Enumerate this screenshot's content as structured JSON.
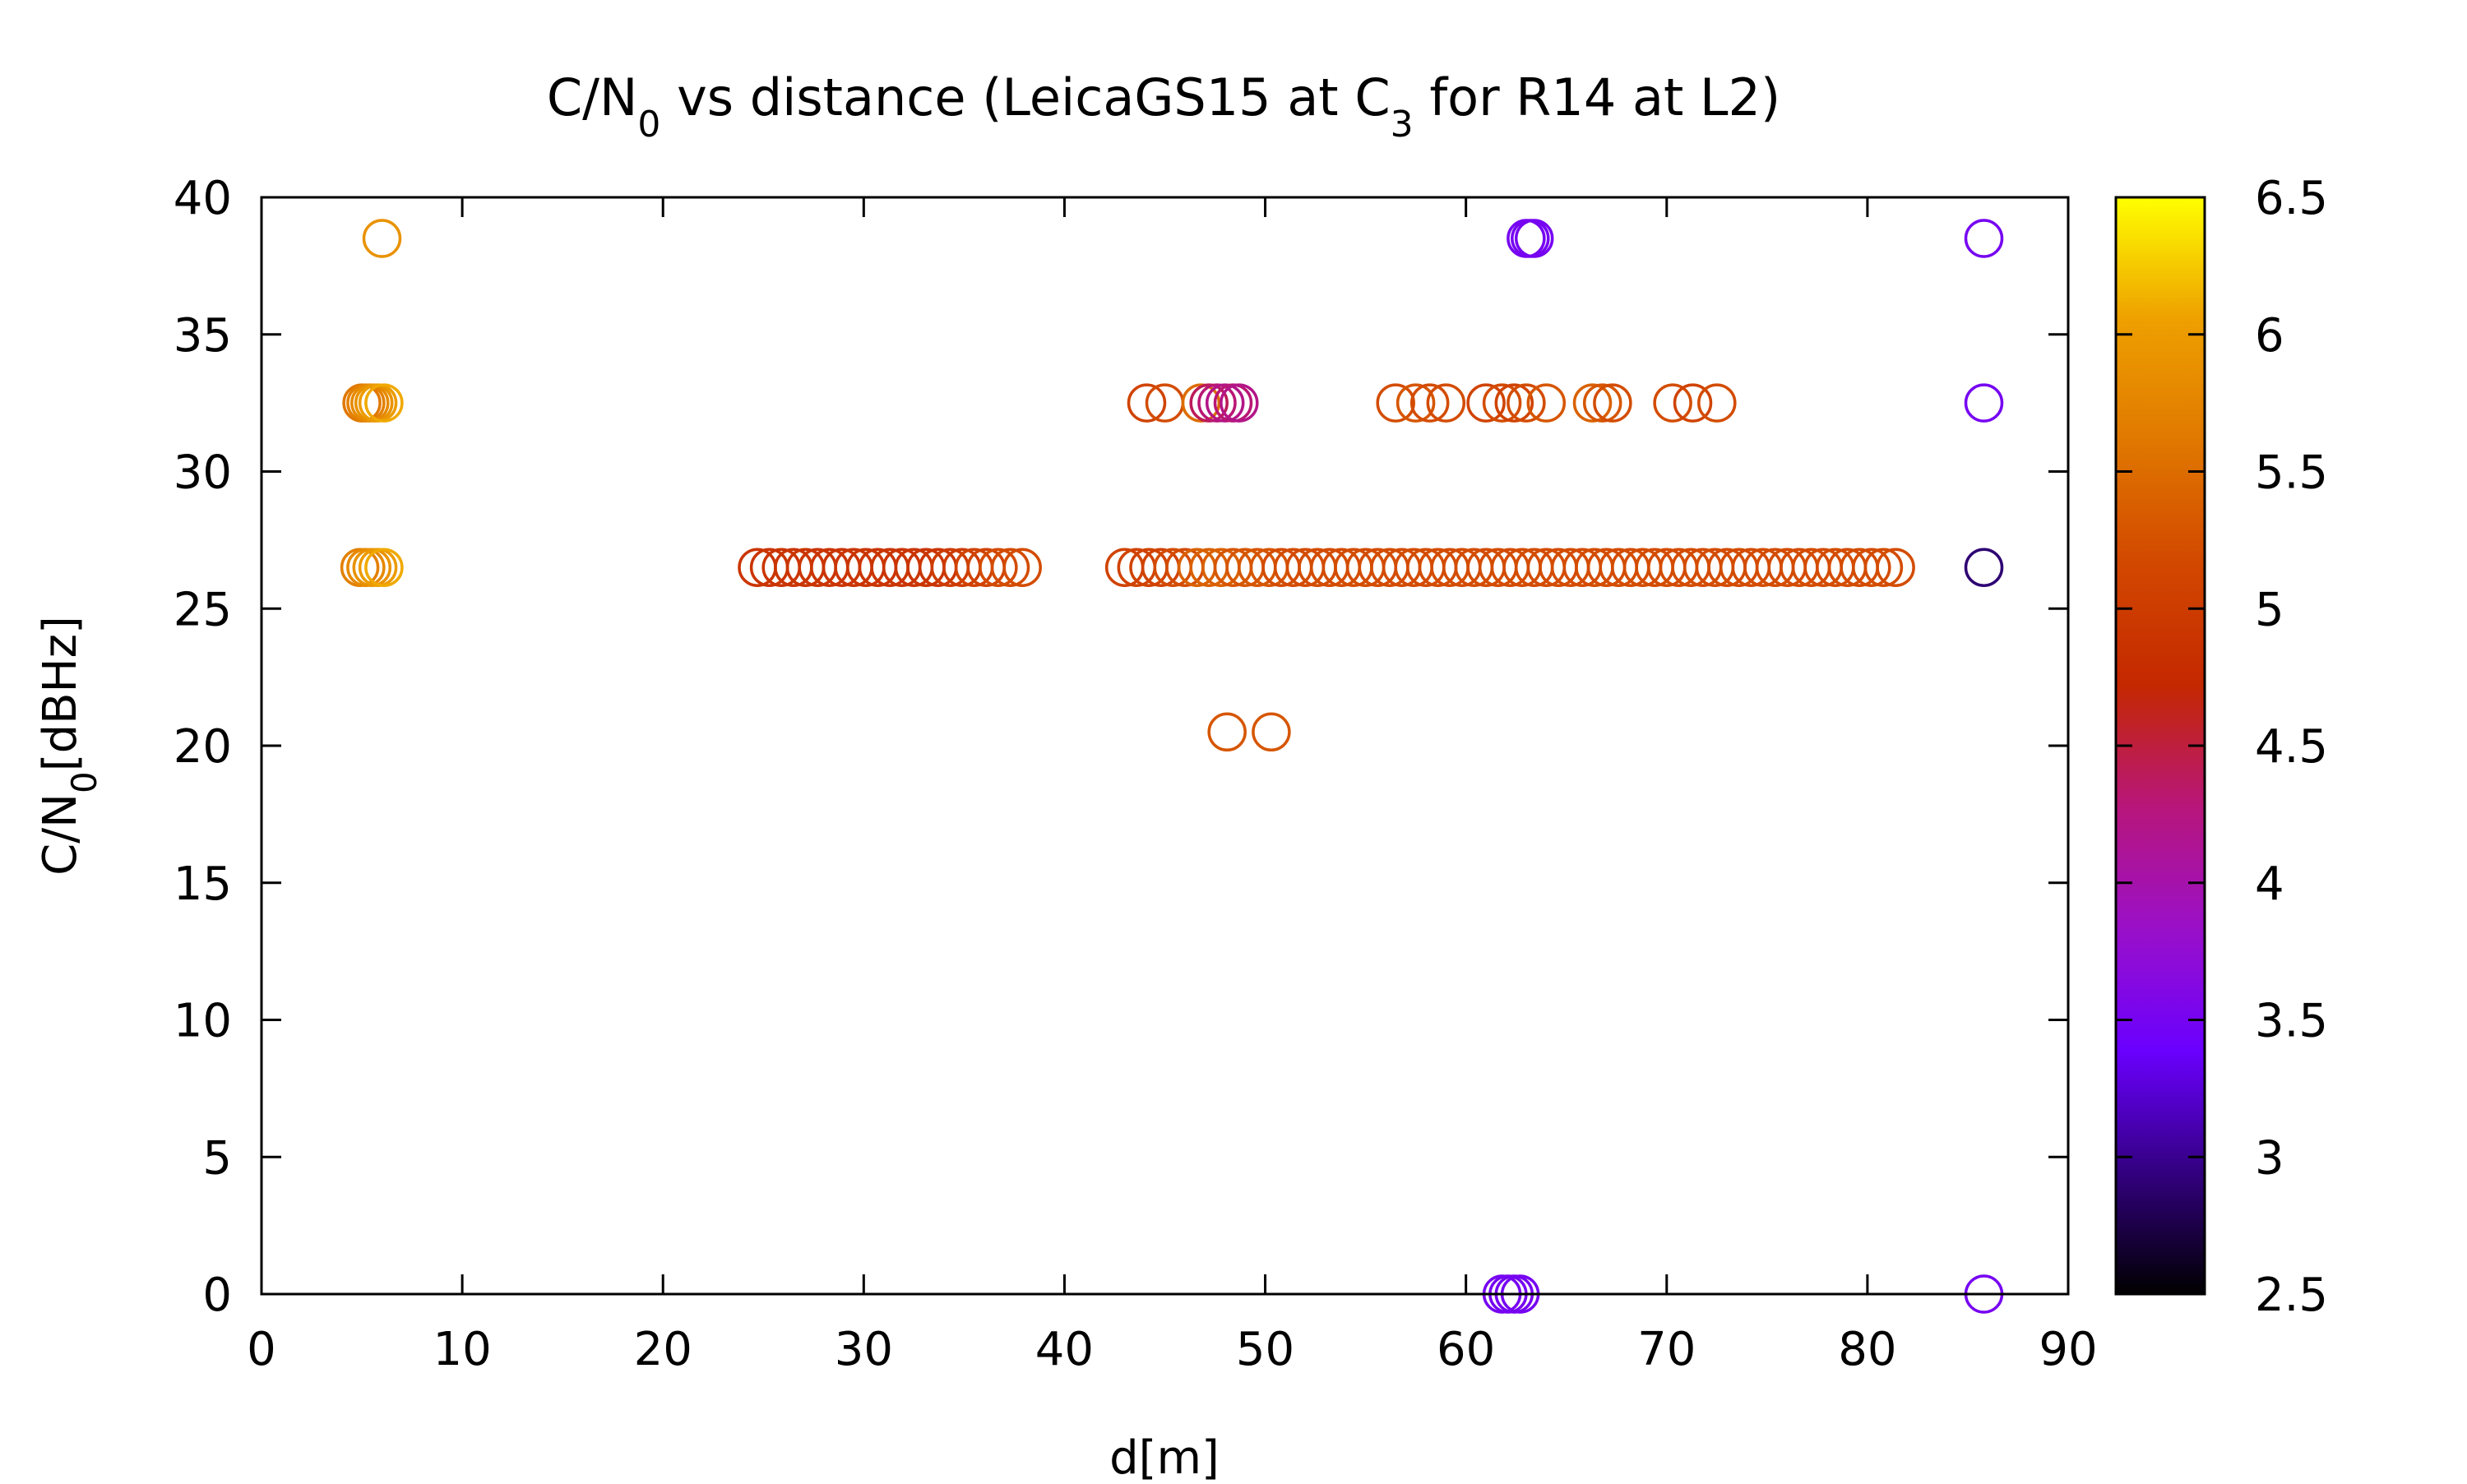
{
  "chart_data": {
    "type": "scatter",
    "title": {
      "prefix": "C/N",
      "prefix_sub": "0",
      "middle": " vs distance (LeicaGS15 at C",
      "middle_sub": "3",
      "suffix": " for R14 at L2)"
    },
    "xlabel": "d[m]",
    "ylabel": {
      "main": "C/N",
      "sub": "0",
      "unit": "[dBHz]"
    },
    "xlim": [
      0,
      90
    ],
    "ylim": [
      0,
      40
    ],
    "xticks": [
      0,
      10,
      20,
      30,
      40,
      50,
      60,
      70,
      80,
      90
    ],
    "yticks": [
      0,
      5,
      10,
      15,
      20,
      25,
      30,
      35,
      40
    ],
    "grid": false,
    "marker": "open-circle",
    "colorbar": {
      "min": 2.5,
      "max": 6.5,
      "ticks": [
        "2.5",
        "3",
        "3.5",
        "4",
        "4.5",
        "5",
        "5.5",
        "6",
        "6.5"
      ],
      "palette": [
        "#000000",
        "#330080",
        "#6a00ff",
        "#9a10c8",
        "#b8167a",
        "#c42800",
        "#d24800",
        "#e07800",
        "#eea000",
        "#ffff00"
      ]
    },
    "points": [
      {
        "x": 6.0,
        "y": 38.5,
        "c": 5.9
      },
      {
        "x": 63.0,
        "y": 38.5,
        "c": 3.5
      },
      {
        "x": 63.2,
        "y": 38.5,
        "c": 3.5
      },
      {
        "x": 63.4,
        "y": 38.5,
        "c": 3.5
      },
      {
        "x": 85.8,
        "y": 38.5,
        "c": 3.5
      },
      {
        "x": 5.0,
        "y": 32.5,
        "c": 5.6
      },
      {
        "x": 5.2,
        "y": 32.5,
        "c": 5.7
      },
      {
        "x": 5.4,
        "y": 32.5,
        "c": 5.8
      },
      {
        "x": 5.6,
        "y": 32.5,
        "c": 5.9
      },
      {
        "x": 5.8,
        "y": 32.5,
        "c": 6.0
      },
      {
        "x": 6.1,
        "y": 32.5,
        "c": 6.1
      },
      {
        "x": 44.1,
        "y": 32.5,
        "c": 5.1
      },
      {
        "x": 45.0,
        "y": 32.5,
        "c": 5.2
      },
      {
        "x": 46.8,
        "y": 32.5,
        "c": 5.5
      },
      {
        "x": 47.2,
        "y": 32.5,
        "c": 4.4
      },
      {
        "x": 47.6,
        "y": 32.5,
        "c": 4.3
      },
      {
        "x": 48.0,
        "y": 32.5,
        "c": 4.2
      },
      {
        "x": 48.4,
        "y": 32.5,
        "c": 4.3
      },
      {
        "x": 48.7,
        "y": 32.5,
        "c": 4.2
      },
      {
        "x": 56.5,
        "y": 32.5,
        "c": 5.2
      },
      {
        "x": 57.5,
        "y": 32.5,
        "c": 5.3
      },
      {
        "x": 58.2,
        "y": 32.5,
        "c": 5.2
      },
      {
        "x": 59.0,
        "y": 32.5,
        "c": 5.2
      },
      {
        "x": 61.0,
        "y": 32.5,
        "c": 5.1
      },
      {
        "x": 61.8,
        "y": 32.5,
        "c": 5.2
      },
      {
        "x": 62.4,
        "y": 32.5,
        "c": 5.1
      },
      {
        "x": 63.0,
        "y": 32.5,
        "c": 5.2
      },
      {
        "x": 64.0,
        "y": 32.5,
        "c": 5.3
      },
      {
        "x": 66.3,
        "y": 32.5,
        "c": 5.4
      },
      {
        "x": 66.8,
        "y": 32.5,
        "c": 5.3
      },
      {
        "x": 67.3,
        "y": 32.5,
        "c": 5.2
      },
      {
        "x": 70.3,
        "y": 32.5,
        "c": 5.2
      },
      {
        "x": 71.3,
        "y": 32.5,
        "c": 5.1
      },
      {
        "x": 72.5,
        "y": 32.5,
        "c": 5.2
      },
      {
        "x": 85.8,
        "y": 32.5,
        "c": 3.5
      },
      {
        "x": 4.9,
        "y": 26.5,
        "c": 5.7
      },
      {
        "x": 5.2,
        "y": 26.5,
        "c": 5.8
      },
      {
        "x": 5.5,
        "y": 26.5,
        "c": 5.9
      },
      {
        "x": 5.8,
        "y": 26.5,
        "c": 6.0
      },
      {
        "x": 6.1,
        "y": 26.5,
        "c": 6.1
      },
      {
        "x": 24.7,
        "y": 26.5,
        "c": 4.9
      },
      {
        "x": 25.3,
        "y": 26.5,
        "c": 4.9
      },
      {
        "x": 25.9,
        "y": 26.5,
        "c": 4.9
      },
      {
        "x": 26.5,
        "y": 26.5,
        "c": 4.9
      },
      {
        "x": 27.1,
        "y": 26.5,
        "c": 4.9
      },
      {
        "x": 27.7,
        "y": 26.5,
        "c": 4.9
      },
      {
        "x": 28.3,
        "y": 26.5,
        "c": 4.9
      },
      {
        "x": 28.9,
        "y": 26.5,
        "c": 4.9
      },
      {
        "x": 29.5,
        "y": 26.5,
        "c": 4.9
      },
      {
        "x": 30.1,
        "y": 26.5,
        "c": 4.9
      },
      {
        "x": 30.7,
        "y": 26.5,
        "c": 4.9
      },
      {
        "x": 31.3,
        "y": 26.5,
        "c": 4.9
      },
      {
        "x": 31.9,
        "y": 26.5,
        "c": 4.9
      },
      {
        "x": 32.5,
        "y": 26.5,
        "c": 4.9
      },
      {
        "x": 33.1,
        "y": 26.5,
        "c": 4.9
      },
      {
        "x": 33.7,
        "y": 26.5,
        "c": 4.9
      },
      {
        "x": 34.3,
        "y": 26.5,
        "c": 5.0
      },
      {
        "x": 34.9,
        "y": 26.5,
        "c": 5.0
      },
      {
        "x": 35.5,
        "y": 26.5,
        "c": 5.1
      },
      {
        "x": 36.1,
        "y": 26.5,
        "c": 5.1
      },
      {
        "x": 36.7,
        "y": 26.5,
        "c": 5.2
      },
      {
        "x": 37.3,
        "y": 26.5,
        "c": 5.2
      },
      {
        "x": 37.9,
        "y": 26.5,
        "c": 5.2
      },
      {
        "x": 43.0,
        "y": 26.5,
        "c": 5.1
      },
      {
        "x": 43.6,
        "y": 26.5,
        "c": 5.1
      },
      {
        "x": 44.2,
        "y": 26.5,
        "c": 5.1
      },
      {
        "x": 44.8,
        "y": 26.5,
        "c": 5.1
      },
      {
        "x": 45.4,
        "y": 26.5,
        "c": 5.2
      },
      {
        "x": 46.0,
        "y": 26.5,
        "c": 5.2
      },
      {
        "x": 46.6,
        "y": 26.5,
        "c": 5.4
      },
      {
        "x": 47.2,
        "y": 26.5,
        "c": 5.4
      },
      {
        "x": 47.8,
        "y": 26.5,
        "c": 5.4
      },
      {
        "x": 48.4,
        "y": 26.5,
        "c": 5.3
      },
      {
        "x": 49.0,
        "y": 26.5,
        "c": 5.3
      },
      {
        "x": 49.6,
        "y": 26.5,
        "c": 5.3
      },
      {
        "x": 50.2,
        "y": 26.5,
        "c": 5.3
      },
      {
        "x": 50.8,
        "y": 26.5,
        "c": 5.2
      },
      {
        "x": 51.4,
        "y": 26.5,
        "c": 5.2
      },
      {
        "x": 52.0,
        "y": 26.5,
        "c": 5.2
      },
      {
        "x": 52.6,
        "y": 26.5,
        "c": 5.2
      },
      {
        "x": 53.2,
        "y": 26.5,
        "c": 5.2
      },
      {
        "x": 53.8,
        "y": 26.5,
        "c": 5.2
      },
      {
        "x": 54.4,
        "y": 26.5,
        "c": 5.2
      },
      {
        "x": 55.0,
        "y": 26.5,
        "c": 5.2
      },
      {
        "x": 55.6,
        "y": 26.5,
        "c": 5.2
      },
      {
        "x": 56.2,
        "y": 26.5,
        "c": 5.2
      },
      {
        "x": 56.8,
        "y": 26.5,
        "c": 5.2
      },
      {
        "x": 57.4,
        "y": 26.5,
        "c": 5.2
      },
      {
        "x": 58.0,
        "y": 26.5,
        "c": 5.2
      },
      {
        "x": 58.6,
        "y": 26.5,
        "c": 5.2
      },
      {
        "x": 59.2,
        "y": 26.5,
        "c": 5.2
      },
      {
        "x": 59.8,
        "y": 26.5,
        "c": 5.2
      },
      {
        "x": 60.4,
        "y": 26.5,
        "c": 5.2
      },
      {
        "x": 61.0,
        "y": 26.5,
        "c": 5.2
      },
      {
        "x": 61.6,
        "y": 26.5,
        "c": 5.2
      },
      {
        "x": 62.2,
        "y": 26.5,
        "c": 5.2
      },
      {
        "x": 62.8,
        "y": 26.5,
        "c": 5.2
      },
      {
        "x": 63.4,
        "y": 26.5,
        "c": 5.2
      },
      {
        "x": 64.0,
        "y": 26.5,
        "c": 5.2
      },
      {
        "x": 64.6,
        "y": 26.5,
        "c": 5.2
      },
      {
        "x": 65.2,
        "y": 26.5,
        "c": 5.2
      },
      {
        "x": 65.8,
        "y": 26.5,
        "c": 5.2
      },
      {
        "x": 66.4,
        "y": 26.5,
        "c": 5.2
      },
      {
        "x": 67.0,
        "y": 26.5,
        "c": 5.2
      },
      {
        "x": 67.6,
        "y": 26.5,
        "c": 5.2
      },
      {
        "x": 68.2,
        "y": 26.5,
        "c": 5.2
      },
      {
        "x": 68.8,
        "y": 26.5,
        "c": 5.2
      },
      {
        "x": 69.4,
        "y": 26.5,
        "c": 5.2
      },
      {
        "x": 70.0,
        "y": 26.5,
        "c": 5.2
      },
      {
        "x": 70.6,
        "y": 26.5,
        "c": 5.2
      },
      {
        "x": 71.2,
        "y": 26.5,
        "c": 5.2
      },
      {
        "x": 71.8,
        "y": 26.5,
        "c": 5.2
      },
      {
        "x": 72.4,
        "y": 26.5,
        "c": 5.2
      },
      {
        "x": 73.0,
        "y": 26.5,
        "c": 5.2
      },
      {
        "x": 73.6,
        "y": 26.5,
        "c": 5.2
      },
      {
        "x": 74.2,
        "y": 26.5,
        "c": 5.2
      },
      {
        "x": 74.8,
        "y": 26.5,
        "c": 5.2
      },
      {
        "x": 75.4,
        "y": 26.5,
        "c": 5.2
      },
      {
        "x": 76.0,
        "y": 26.5,
        "c": 5.2
      },
      {
        "x": 76.6,
        "y": 26.5,
        "c": 5.2
      },
      {
        "x": 77.2,
        "y": 26.5,
        "c": 5.2
      },
      {
        "x": 77.8,
        "y": 26.5,
        "c": 5.2
      },
      {
        "x": 78.4,
        "y": 26.5,
        "c": 5.2
      },
      {
        "x": 79.0,
        "y": 26.5,
        "c": 5.2
      },
      {
        "x": 79.6,
        "y": 26.5,
        "c": 5.2
      },
      {
        "x": 80.2,
        "y": 26.5,
        "c": 5.2
      },
      {
        "x": 80.8,
        "y": 26.5,
        "c": 5.2
      },
      {
        "x": 81.4,
        "y": 26.5,
        "c": 5.2
      },
      {
        "x": 85.8,
        "y": 26.5,
        "c": 2.9
      },
      {
        "x": 48.1,
        "y": 20.5,
        "c": 5.3
      },
      {
        "x": 50.3,
        "y": 20.5,
        "c": 5.3
      },
      {
        "x": 61.8,
        "y": 0.0,
        "c": 3.5
      },
      {
        "x": 62.1,
        "y": 0.0,
        "c": 3.5
      },
      {
        "x": 62.4,
        "y": 0.0,
        "c": 3.5
      },
      {
        "x": 62.7,
        "y": 0.0,
        "c": 3.5
      },
      {
        "x": 85.8,
        "y": 0.0,
        "c": 3.5
      }
    ]
  }
}
